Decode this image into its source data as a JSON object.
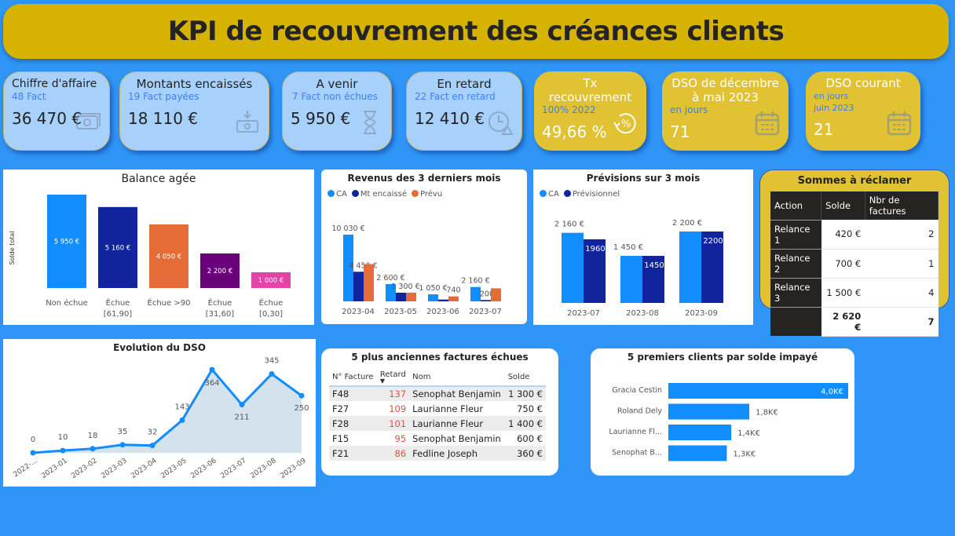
{
  "header": {
    "title": "KPI de recouvrement des créances clients"
  },
  "kpis": [
    {
      "title": "Chiffre d'affaire",
      "sub": "48 Fact",
      "value": "36 470 €",
      "icon": "money-icon"
    },
    {
      "title": "Montants encaissés",
      "sub": "19 Fact payées",
      "value": "18 110 €",
      "icon": "money-in-icon"
    },
    {
      "title": "A venir",
      "sub": "7 Fact non échues",
      "value": "5 950 €",
      "icon": "hourglass-icon"
    },
    {
      "title": "En retard",
      "sub": "22 Fact en retard",
      "value": "12 410 €",
      "icon": "clock-warning-icon"
    },
    {
      "title": "Tx recouvrement",
      "sub": "100% 2022",
      "value": "49,66 %",
      "icon": "percent-cycle-icon"
    },
    {
      "title": "DSO de décembre à mai 2023",
      "sub": "en jours",
      "value": "71",
      "icon": "calendar-icon"
    },
    {
      "title": "DSO courant",
      "sub": "en jours",
      "sub2": "juin 2023",
      "value": "21",
      "icon": "calendar-icon"
    }
  ],
  "colors": {
    "background": "#2f95f7",
    "header": "#d6b300",
    "kpi_blue": "#a7d1fb",
    "kpi_yellow": "#e0c232",
    "ca": "#118dff",
    "encaisse": "#12239e",
    "prevu": "#e66c37",
    "purple": "#6b007b",
    "pink": "#e044a7"
  },
  "chart_data": [
    {
      "type": "bar",
      "title": "Balance agée",
      "ylabel": "Solde total",
      "categories": [
        "Non échue",
        "Échue [61,90]",
        "Échue >90",
        "Échue [31,60]",
        "Échue [0,30]"
      ],
      "cat_lines": [
        [
          "Non échue"
        ],
        [
          "Échue",
          "[61,90]"
        ],
        [
          "Échue >90"
        ],
        [
          "Échue",
          "[31,60]"
        ],
        [
          "Échue",
          "[0,30]"
        ]
      ],
      "values": [
        5950,
        5160,
        4050,
        2200,
        1000
      ],
      "labels": [
        "5 950 €",
        "5 160 €",
        "4 050 €",
        "2 200 €",
        "1 000 €"
      ],
      "colors": [
        "#118dff",
        "#12239e",
        "#e66c37",
        "#6b007b",
        "#e044a7"
      ]
    },
    {
      "type": "bar",
      "title": "Revenus des 3 derniers mois",
      "legend": "top-left",
      "categories": [
        "2023-04",
        "2023-05",
        "2023-06",
        "2023-07"
      ],
      "series": [
        {
          "name": "CA",
          "color": "#118dff",
          "values": [
            10030,
            2600,
            1050,
            2160
          ],
          "labels": [
            "10 030 €",
            "2 600 €",
            "1 050 €",
            "2 160 €"
          ]
        },
        {
          "name": "Mt encaissé",
          "color": "#12239e",
          "values": [
            4450,
            1300,
            270,
            200
          ],
          "labels": [
            "4 450 €",
            "1 300 €",
            "",
            "200 €"
          ]
        },
        {
          "name": "Prévu",
          "color": "#e66c37",
          "values": [
            5600,
            1300,
            740,
            1960
          ],
          "labels": [
            "",
            "",
            "740",
            ""
          ]
        }
      ]
    },
    {
      "type": "bar",
      "title": "Prévisions sur 3 mois",
      "legend": "top-left",
      "categories": [
        "2023-07",
        "2023-08",
        "2023-09"
      ],
      "series": [
        {
          "name": "CA",
          "color": "#118dff",
          "values": [
            2160,
            1450,
            2200
          ],
          "labels": [
            "2 160 €",
            "1 450 €",
            "2 200 €"
          ]
        },
        {
          "name": "Prévisionnel",
          "color": "#12239e",
          "values": [
            1960,
            1450,
            2200
          ],
          "labels": [
            "1960",
            "1450",
            "2200"
          ]
        }
      ]
    },
    {
      "type": "area",
      "title": "Evolution du DSO",
      "categories": [
        "2022-...",
        "2023-01",
        "2023-02",
        "2023-03",
        "2023-04",
        "2023-05",
        "2023-06",
        "2023-07",
        "2023-08",
        "2023-09"
      ],
      "values": [
        0,
        10,
        18,
        35,
        32,
        143,
        364,
        211,
        345,
        250
      ]
    },
    {
      "type": "bar",
      "orientation": "horizontal",
      "title": "5 premiers clients par solde impayé",
      "categories": [
        "Gracia Cestin",
        "Roland Dely",
        "Laurianne Fl...",
        "Senophat B..."
      ],
      "values": [
        4.0,
        1.8,
        1.4,
        1.3
      ],
      "labels": [
        "4,0K€",
        "1,8K€",
        "1,4K€",
        "1,3K€"
      ]
    }
  ],
  "sommes": {
    "title": "Sommes à réclamer",
    "headers": [
      "Action",
      "Solde",
      "Nbr de factures"
    ],
    "rows": [
      [
        "Relance 1",
        "420 €",
        "2"
      ],
      [
        "Relance 2",
        "700 €",
        "1"
      ],
      [
        "Relance 3",
        "1 500 €",
        "4"
      ]
    ],
    "total": [
      "",
      "2 620 €",
      "7"
    ]
  },
  "old_invoices": {
    "title": "5 plus anciennes factures échues",
    "headers": [
      "N° Facture",
      "Retard",
      "Nom",
      "Solde"
    ],
    "sort_column": "Retard",
    "rows": [
      [
        "F48",
        "137",
        "Senophat Benjamin",
        "1 300 €"
      ],
      [
        "F27",
        "109",
        "Laurianne Fleur",
        "750 €"
      ],
      [
        "F28",
        "101",
        "Laurianne Fleur",
        "1 400 €"
      ],
      [
        "F15",
        "95",
        "Senophat Benjamin",
        "600 €"
      ],
      [
        "F21",
        "86",
        "Fedline Joseph",
        "360 €"
      ]
    ]
  }
}
